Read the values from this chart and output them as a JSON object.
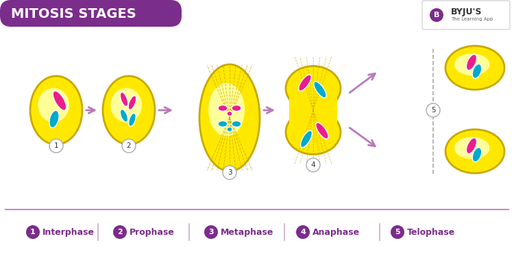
{
  "title": "MITOSIS STAGES",
  "title_bg": "#7B2D8B",
  "title_color": "#FFFFFF",
  "bg_color": "#FFFFFF",
  "cell_color": "#FFE800",
  "cell_edge": "#C8A800",
  "pink": "#E91E8C",
  "blue": "#00AACC",
  "arrow_color": "#B87AB8",
  "label_bg": "#7B2D8B",
  "label_color": "#FFFFFF",
  "legend_items": [
    "1",
    "2",
    "3",
    "4",
    "5"
  ],
  "legend_labels": [
    "Interphase",
    "Prophase",
    "Metaphase",
    "Anaphase",
    "Telophase"
  ],
  "divider_color": "#CC88CC",
  "number_bg": "#FFFFFF",
  "number_color": "#333333"
}
